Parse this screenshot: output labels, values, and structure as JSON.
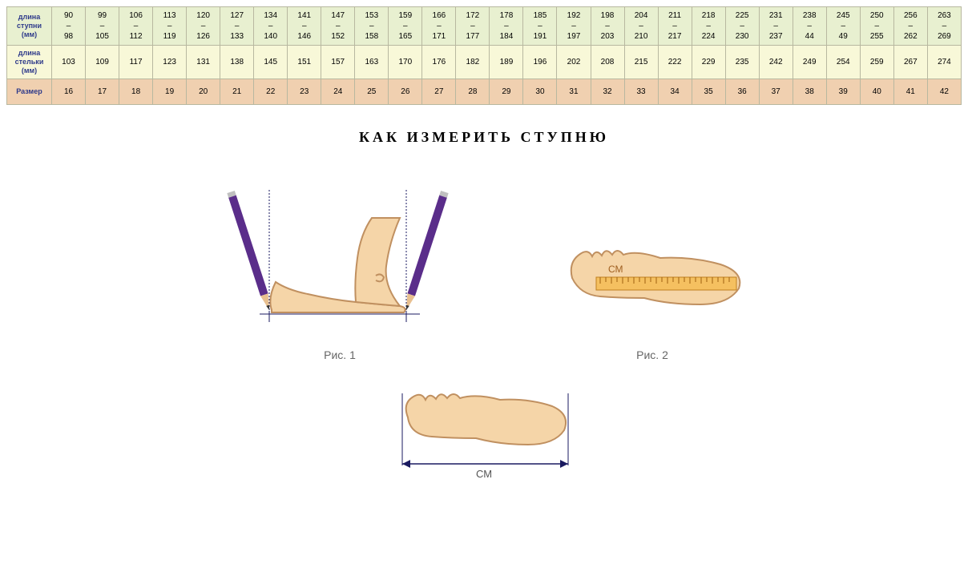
{
  "table": {
    "headers": {
      "foot_length": "длина ступни (мм)",
      "insole_length": "длина стельки (мм)",
      "size": "Размер"
    },
    "foot_length": [
      {
        "from": "90",
        "to": "98"
      },
      {
        "from": "99",
        "to": "105"
      },
      {
        "from": "106",
        "to": "112"
      },
      {
        "from": "113",
        "to": "119"
      },
      {
        "from": "120",
        "to": "126"
      },
      {
        "from": "127",
        "to": "133"
      },
      {
        "from": "134",
        "to": "140"
      },
      {
        "from": "141",
        "to": "146"
      },
      {
        "from": "147",
        "to": "152"
      },
      {
        "from": "153",
        "to": "158"
      },
      {
        "from": "159",
        "to": "165"
      },
      {
        "from": "166",
        "to": "171"
      },
      {
        "from": "172",
        "to": "177"
      },
      {
        "from": "178",
        "to": "184"
      },
      {
        "from": "185",
        "to": "191"
      },
      {
        "from": "192",
        "to": "197"
      },
      {
        "from": "198",
        "to": "203"
      },
      {
        "from": "204",
        "to": "210"
      },
      {
        "from": "211",
        "to": "217"
      },
      {
        "from": "218",
        "to": "224"
      },
      {
        "from": "225",
        "to": "230"
      },
      {
        "from": "231",
        "to": "237"
      },
      {
        "from": "238",
        "to": "44"
      },
      {
        "from": "245",
        "to": "49"
      },
      {
        "from": "250",
        "to": "255"
      },
      {
        "from": "256",
        "to": "262"
      },
      {
        "from": "263",
        "to": "269"
      }
    ],
    "insole_length": [
      "103",
      "109",
      "117",
      "123",
      "131",
      "138",
      "145",
      "151",
      "157",
      "163",
      "170",
      "176",
      "182",
      "189",
      "196",
      "202",
      "208",
      "215",
      "222",
      "229",
      "235",
      "242",
      "249",
      "254",
      "259",
      "267",
      "274"
    ],
    "size": [
      "16",
      "17",
      "18",
      "19",
      "20",
      "21",
      "22",
      "23",
      "24",
      "25",
      "26",
      "27",
      "28",
      "29",
      "30",
      "31",
      "32",
      "33",
      "34",
      "35",
      "36",
      "37",
      "38",
      "39",
      "40",
      "41",
      "42"
    ]
  },
  "title": "КАК  ИЗМЕРИТЬ  СТУПНЮ",
  "figures": {
    "fig1_caption": "Рис. 1",
    "fig2_caption": "Рис. 2",
    "cm_label": "СМ",
    "cm_label2": "СМ"
  },
  "colors": {
    "foot_skin": "#f5d5a8",
    "foot_outline": "#c09060",
    "pencil_body": "#5a2d8a",
    "pencil_tip_wood": "#e8c090",
    "pencil_lead": "#333333",
    "guide_line": "#1a1a60",
    "ruler_fill": "#f5c060",
    "ruler_stroke": "#c08020",
    "caption_color": "#666666",
    "arrow_color": "#1a1a60"
  }
}
